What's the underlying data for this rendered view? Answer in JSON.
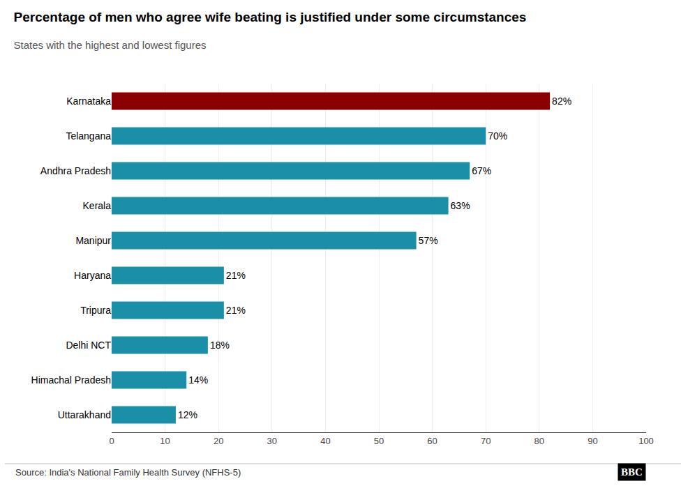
{
  "chart_data": {
    "type": "bar",
    "orientation": "horizontal",
    "title": "Percentage of men who agree wife beating is justified under some circumstances",
    "subtitle": "States with the highest and lowest figures",
    "categories": [
      "Karnataka",
      "Telangana",
      "Andhra Pradesh",
      "Kerala",
      "Manipur",
      "Haryana",
      "Tripura",
      "Delhi NCT",
      "Himachal Pradesh",
      "Uttarakhand"
    ],
    "values": [
      82,
      70,
      67,
      63,
      57,
      21,
      21,
      18,
      14,
      12
    ],
    "value_labels": [
      "82%",
      "70%",
      "67%",
      "63%",
      "57%",
      "21%",
      "21%",
      "18%",
      "14%",
      "12%"
    ],
    "data_labels": true,
    "colors": [
      "#8B0000",
      "#1B8FA8",
      "#1B8FA8",
      "#1B8FA8",
      "#1B8FA8",
      "#1B8FA8",
      "#1B8FA8",
      "#1B8FA8",
      "#1B8FA8",
      "#1B8FA8"
    ],
    "xlim": [
      0,
      100
    ],
    "xticks": [
      0,
      10,
      20,
      30,
      40,
      50,
      60,
      70,
      80,
      90,
      100
    ],
    "grid": true,
    "annotations": [
      "Source: India's National Family Health Survey (NFHS-5)",
      "BBC"
    ]
  }
}
